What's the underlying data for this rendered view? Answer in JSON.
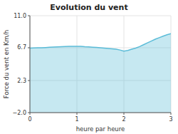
{
  "chart_data": {
    "type": "area",
    "title": "Evolution du vent",
    "x_label": "heure par heure",
    "y_label": "Force du vent en Km/h",
    "x": [
      0.0,
      0.083,
      0.167,
      0.25,
      0.333,
      0.417,
      0.5,
      0.583,
      0.667,
      0.75,
      0.833,
      0.917,
      1.0,
      1.083,
      1.167,
      1.25,
      1.333,
      1.417,
      1.5,
      1.583,
      1.667,
      1.75,
      1.833,
      1.917,
      2.0,
      2.083,
      2.167,
      2.25,
      2.333,
      2.417,
      2.5,
      2.583,
      2.667,
      2.75,
      2.833,
      2.917,
      3.0
    ],
    "series": [
      {
        "color": "#5bbcd8",
        "values": [
          6.65,
          6.67,
          6.69,
          6.71,
          6.73,
          6.76,
          6.79,
          6.82,
          6.84,
          6.86,
          6.88,
          6.9,
          6.9,
          6.88,
          6.84,
          6.82,
          6.78,
          6.74,
          6.7,
          6.65,
          6.6,
          6.55,
          6.5,
          6.4,
          6.25,
          6.35,
          6.5,
          6.65,
          6.85,
          7.1,
          7.35,
          7.6,
          7.85,
          8.05,
          8.25,
          8.45,
          8.6
        ]
      }
    ],
    "xlim": [
      0,
      3
    ],
    "xticks": [
      0,
      1,
      2,
      3
    ],
    "ylim": [
      -2.0,
      11.0
    ],
    "yticks": [
      {
        "value": -2.0,
        "label": "−2.0"
      },
      2.3,
      6.7,
      {
        "value": 11.0,
        "label": "11.0"
      }
    ],
    "grid": true
  }
}
